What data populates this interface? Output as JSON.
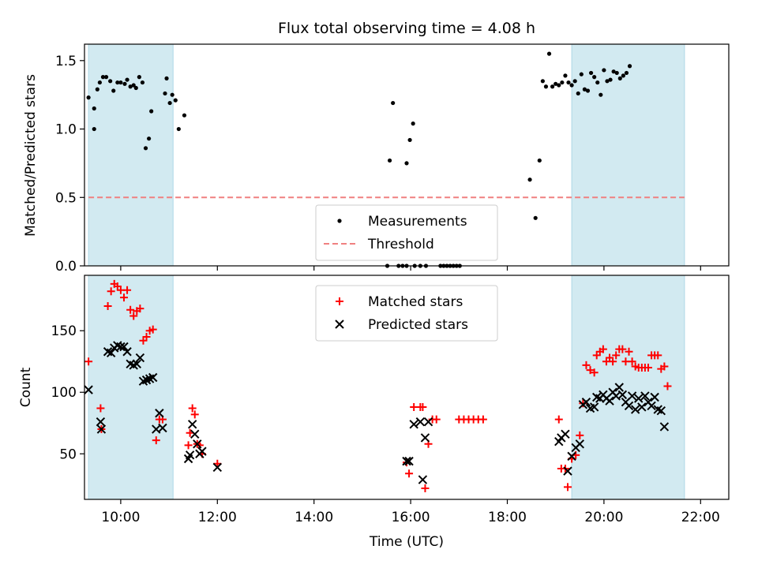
{
  "figure": {
    "title": "Flux total observing time = 4.08 h",
    "xlabel": "Time (UTC)"
  },
  "colors": {
    "band": "#add8e6",
    "threshold": "#f08080",
    "matched": "#ff0000",
    "predicted": "#000000",
    "measurement": "#000000"
  },
  "chart_data": [
    {
      "type": "scatter",
      "panel": "top",
      "ylabel": "Matched/Predicted stars",
      "ylim": [
        0,
        1.62
      ],
      "yticks": [
        0.0,
        0.5,
        1.0,
        1.5
      ],
      "ytick_labels": [
        "0.0",
        "0.5",
        "1.0",
        "1.5"
      ],
      "xlim": [
        "09:15",
        "22:35"
      ],
      "grid": false,
      "legend_position": "lower-center",
      "shaded_bands": [
        [
          "09:20",
          "11:05"
        ],
        [
          "19:20",
          "21:40"
        ]
      ],
      "threshold": {
        "name": "Threshold",
        "y": 0.5,
        "x_range": [
          "09:20",
          "21:40"
        ],
        "style": "dashed"
      },
      "series": [
        {
          "name": "Measurements",
          "marker": "dot",
          "points": [
            [
              "09:20",
              1.23
            ],
            [
              "09:27",
              1.15
            ],
            [
              "09:27",
              1.0
            ],
            [
              "09:31",
              1.29
            ],
            [
              "09:34",
              1.34
            ],
            [
              "09:38",
              1.38
            ],
            [
              "09:42",
              1.38
            ],
            [
              "09:47",
              1.35
            ],
            [
              "09:51",
              1.28
            ],
            [
              "09:56",
              1.34
            ],
            [
              "10:00",
              1.34
            ],
            [
              "10:05",
              1.33
            ],
            [
              "10:08",
              1.36
            ],
            [
              "10:12",
              1.31
            ],
            [
              "10:16",
              1.32
            ],
            [
              "10:19",
              1.3
            ],
            [
              "10:23",
              1.38
            ],
            [
              "10:27",
              1.34
            ],
            [
              "10:31",
              0.86
            ],
            [
              "10:35",
              0.93
            ],
            [
              "10:38",
              1.13
            ],
            [
              "10:55",
              1.26
            ],
            [
              "10:57",
              1.37
            ],
            [
              "11:01",
              1.19
            ],
            [
              "11:04",
              1.25
            ],
            [
              "11:08",
              1.21
            ],
            [
              "11:12",
              1.0
            ],
            [
              "11:19",
              1.1
            ],
            [
              "15:34",
              0.77
            ],
            [
              "15:38",
              1.19
            ],
            [
              "15:55",
              0.75
            ],
            [
              "15:59",
              0.92
            ],
            [
              "16:03",
              1.04
            ],
            [
              "15:31",
              0.0
            ],
            [
              "15:45",
              0.0
            ],
            [
              "15:50",
              0.0
            ],
            [
              "15:55",
              0.0
            ],
            [
              "16:05",
              0.0
            ],
            [
              "16:12",
              0.0
            ],
            [
              "16:19",
              0.0
            ],
            [
              "16:37",
              0.0
            ],
            [
              "16:41",
              0.0
            ],
            [
              "16:45",
              0.0
            ],
            [
              "16:49",
              0.0
            ],
            [
              "16:53",
              0.0
            ],
            [
              "16:57",
              0.0
            ],
            [
              "17:01",
              0.0
            ],
            [
              "18:28",
              0.63
            ],
            [
              "18:35",
              0.35
            ],
            [
              "18:40",
              0.77
            ],
            [
              "18:44",
              1.35
            ],
            [
              "18:48",
              1.31
            ],
            [
              "18:52",
              1.55
            ],
            [
              "18:56",
              1.31
            ],
            [
              "19:00",
              1.33
            ],
            [
              "19:04",
              1.32
            ],
            [
              "19:08",
              1.34
            ],
            [
              "19:12",
              1.39
            ],
            [
              "19:16",
              1.34
            ],
            [
              "19:20",
              1.32
            ],
            [
              "19:24",
              1.35
            ],
            [
              "19:28",
              1.26
            ],
            [
              "19:32",
              1.4
            ],
            [
              "19:36",
              1.29
            ],
            [
              "19:40",
              1.28
            ],
            [
              "19:44",
              1.41
            ],
            [
              "19:48",
              1.38
            ],
            [
              "19:52",
              1.34
            ],
            [
              "19:56",
              1.25
            ],
            [
              "20:00",
              1.43
            ],
            [
              "20:04",
              1.35
            ],
            [
              "20:08",
              1.36
            ],
            [
              "20:12",
              1.42
            ],
            [
              "20:16",
              1.41
            ],
            [
              "20:20",
              1.37
            ],
            [
              "20:24",
              1.39
            ],
            [
              "20:28",
              1.41
            ],
            [
              "20:32",
              1.46
            ]
          ]
        }
      ]
    },
    {
      "type": "scatter",
      "panel": "bottom",
      "ylabel": "Count",
      "ylim": [
        13,
        195
      ],
      "yticks": [
        50,
        100,
        150
      ],
      "ytick_labels": [
        "50",
        "100",
        "150"
      ],
      "xlim": [
        "09:15",
        "22:35"
      ],
      "xticks": [
        "10:00",
        "12:00",
        "14:00",
        "16:00",
        "18:00",
        "20:00",
        "22:00"
      ],
      "xtick_labels": [
        "10:00",
        "12:00",
        "14:00",
        "16:00",
        "18:00",
        "20:00",
        "22:00"
      ],
      "grid": false,
      "legend_position": "upper-center",
      "shaded_bands": [
        [
          "09:20",
          "11:05"
        ],
        [
          "19:20",
          "21:40"
        ]
      ],
      "series": [
        {
          "name": "Matched stars",
          "marker": "plus",
          "points": [
            [
              "09:20",
              125
            ],
            [
              "09:35",
              87
            ],
            [
              "09:36",
              70
            ],
            [
              "09:44",
              170
            ],
            [
              "09:48",
              182
            ],
            [
              "09:52",
              188
            ],
            [
              "09:56",
              186
            ],
            [
              "10:00",
              183
            ],
            [
              "10:04",
              177
            ],
            [
              "10:08",
              183
            ],
            [
              "10:12",
              167
            ],
            [
              "10:16",
              162
            ],
            [
              "10:20",
              166
            ],
            [
              "10:24",
              168
            ],
            [
              "10:28",
              142
            ],
            [
              "10:32",
              145
            ],
            [
              "10:36",
              150
            ],
            [
              "10:40",
              151
            ],
            [
              "10:44",
              61
            ],
            [
              "10:48",
              78
            ],
            [
              "10:52",
              78
            ],
            [
              "11:24",
              57
            ],
            [
              "11:26",
              67
            ],
            [
              "11:29",
              87
            ],
            [
              "11:32",
              82
            ],
            [
              "11:35",
              58
            ],
            [
              "11:38",
              57
            ],
            [
              "11:41",
              50
            ],
            [
              "12:00",
              42
            ],
            [
              "15:55",
              43
            ],
            [
              "15:58",
              34
            ],
            [
              "16:04",
              88
            ],
            [
              "16:12",
              88
            ],
            [
              "16:15",
              88
            ],
            [
              "16:18",
              22
            ],
            [
              "16:22",
              58
            ],
            [
              "16:27",
              78
            ],
            [
              "16:32",
              78
            ],
            [
              "17:00",
              78
            ],
            [
              "17:06",
              78
            ],
            [
              "17:12",
              78
            ],
            [
              "17:18",
              78
            ],
            [
              "17:24",
              78
            ],
            [
              "17:30",
              78
            ],
            [
              "19:04",
              78
            ],
            [
              "19:07",
              38
            ],
            [
              "19:12",
              38
            ],
            [
              "19:15",
              23
            ],
            [
              "19:20",
              46
            ],
            [
              "19:25",
              49
            ],
            [
              "19:30",
              65
            ],
            [
              "19:34",
              91
            ],
            [
              "19:38",
              122
            ],
            [
              "19:43",
              118
            ],
            [
              "19:48",
              116
            ],
            [
              "19:51",
              130
            ],
            [
              "19:55",
              133
            ],
            [
              "19:59",
              135
            ],
            [
              "20:03",
              125
            ],
            [
              "20:07",
              128
            ],
            [
              "20:11",
              125
            ],
            [
              "20:15",
              130
            ],
            [
              "20:19",
              135
            ],
            [
              "20:23",
              135
            ],
            [
              "20:27",
              125
            ],
            [
              "20:31",
              133
            ],
            [
              "20:35",
              125
            ],
            [
              "20:39",
              121
            ],
            [
              "20:43",
              120
            ],
            [
              "20:47",
              120
            ],
            [
              "20:51",
              120
            ],
            [
              "20:55",
              120
            ],
            [
              "20:59",
              130
            ],
            [
              "21:03",
              130
            ],
            [
              "21:07",
              130
            ],
            [
              "21:11",
              119
            ],
            [
              "21:15",
              121
            ],
            [
              "21:19",
              105
            ]
          ]
        },
        {
          "name": "Predicted stars",
          "marker": "x",
          "points": [
            [
              "09:20",
              102
            ],
            [
              "09:35",
              76
            ],
            [
              "09:36",
              70
            ],
            [
              "09:44",
              133
            ],
            [
              "09:48",
              132
            ],
            [
              "09:52",
              136
            ],
            [
              "09:56",
              138
            ],
            [
              "10:00",
              137
            ],
            [
              "10:04",
              137
            ],
            [
              "10:08",
              133
            ],
            [
              "10:12",
              123
            ],
            [
              "10:16",
              122
            ],
            [
              "10:20",
              123
            ],
            [
              "10:24",
              128
            ],
            [
              "10:28",
              109
            ],
            [
              "10:32",
              110
            ],
            [
              "10:36",
              111
            ],
            [
              "10:40",
              112
            ],
            [
              "10:44",
              70
            ],
            [
              "10:48",
              83
            ],
            [
              "10:52",
              71
            ],
            [
              "11:24",
              46
            ],
            [
              "11:26",
              49
            ],
            [
              "11:29",
              74
            ],
            [
              "11:32",
              66
            ],
            [
              "11:35",
              58
            ],
            [
              "11:38",
              50
            ],
            [
              "11:41",
              52
            ],
            [
              "12:00",
              39
            ],
            [
              "15:55",
              44
            ],
            [
              "15:58",
              44
            ],
            [
              "16:04",
              74
            ],
            [
              "16:12",
              76
            ],
            [
              "16:15",
              29
            ],
            [
              "16:18",
              63
            ],
            [
              "16:22",
              76
            ],
            [
              "19:04",
              60
            ],
            [
              "19:07",
              63
            ],
            [
              "19:12",
              66
            ],
            [
              "19:15",
              36
            ],
            [
              "19:20",
              48
            ],
            [
              "19:25",
              55
            ],
            [
              "19:30",
              58
            ],
            [
              "19:34",
              90
            ],
            [
              "19:38",
              92
            ],
            [
              "19:43",
              87
            ],
            [
              "19:48",
              88
            ],
            [
              "19:51",
              96
            ],
            [
              "19:55",
              95
            ],
            [
              "19:59",
              98
            ],
            [
              "20:03",
              95
            ],
            [
              "20:07",
              93
            ],
            [
              "20:11",
              100
            ],
            [
              "20:15",
              97
            ],
            [
              "20:19",
              104
            ],
            [
              "20:23",
              98
            ],
            [
              "20:27",
              92
            ],
            [
              "20:31",
              89
            ],
            [
              "20:35",
              97
            ],
            [
              "20:39",
              86
            ],
            [
              "20:43",
              95
            ],
            [
              "20:47",
              88
            ],
            [
              "20:51",
              97
            ],
            [
              "20:55",
              92
            ],
            [
              "20:59",
              89
            ],
            [
              "21:03",
              96
            ],
            [
              "21:07",
              86
            ],
            [
              "21:11",
              85
            ],
            [
              "21:15",
              72
            ]
          ]
        }
      ]
    }
  ]
}
